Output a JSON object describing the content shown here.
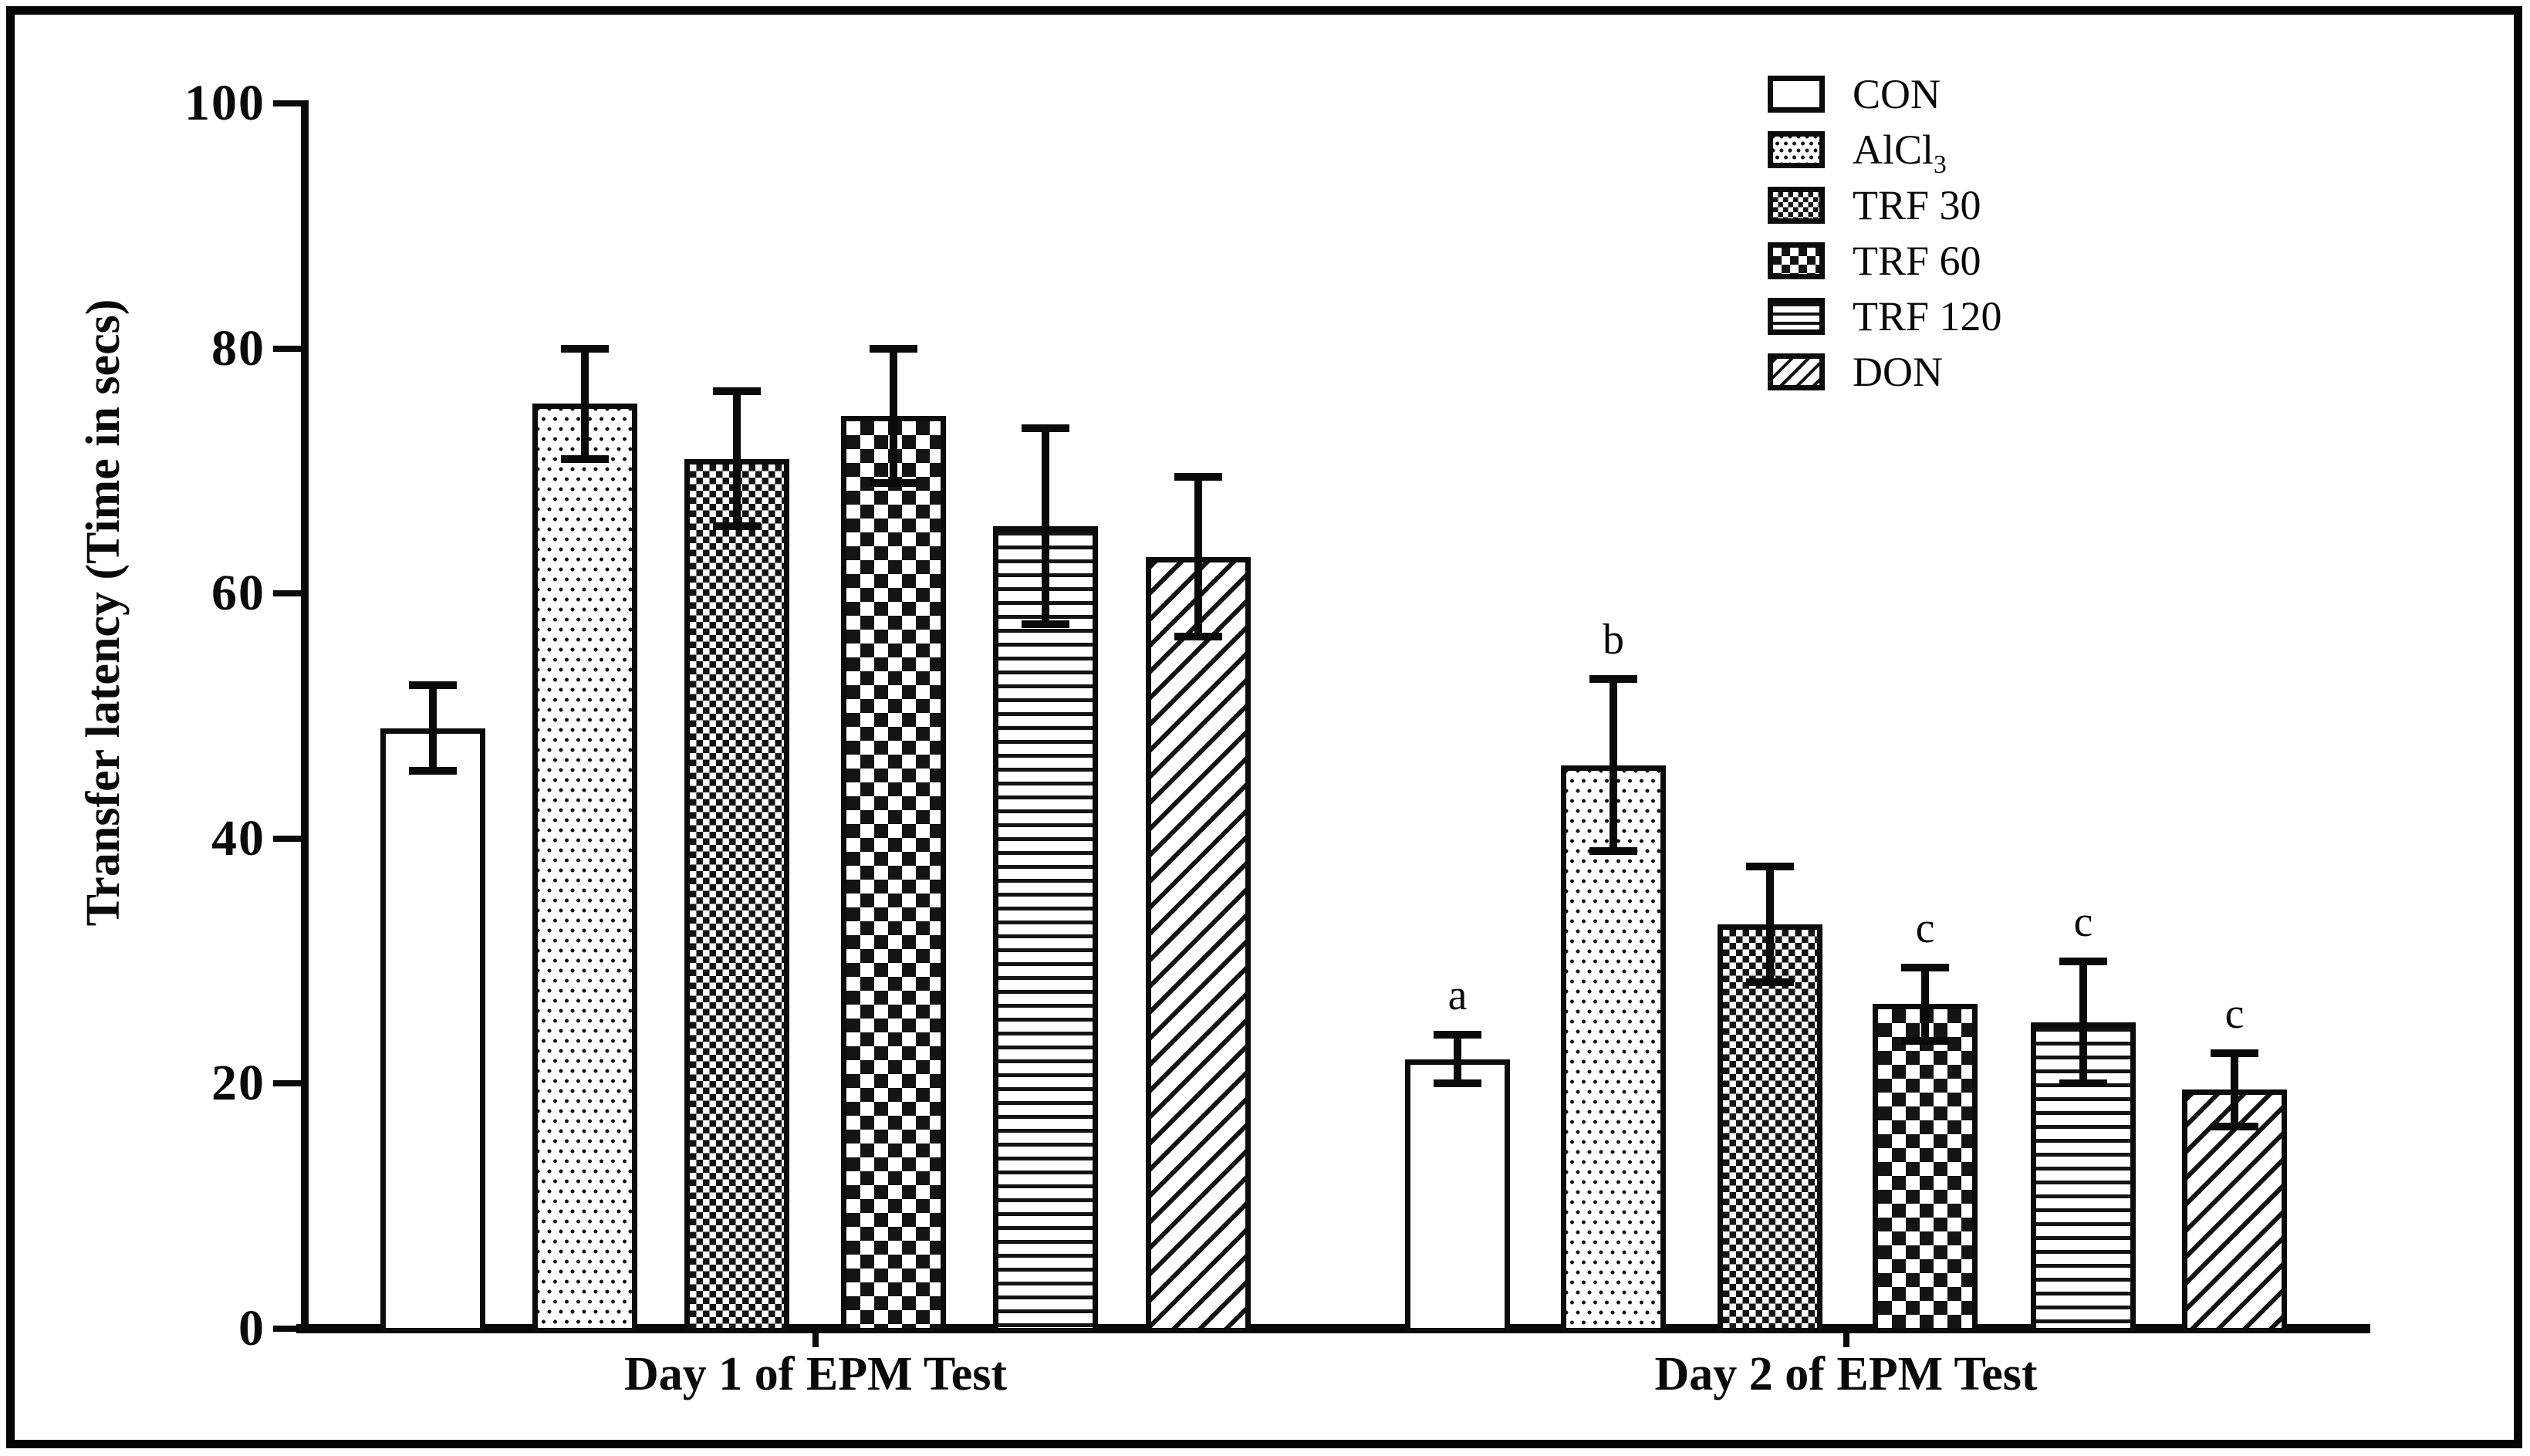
{
  "figure": {
    "background": "#ffffff",
    "border_color": "#050505",
    "ink_color": "#0a0a0a"
  },
  "chart_data": {
    "type": "bar",
    "title": "",
    "xlabel": "",
    "ylabel": "Transfer latency (Time in secs)",
    "ylim": [
      0,
      100
    ],
    "yticks": [
      0,
      20,
      40,
      60,
      80,
      100
    ],
    "grid": false,
    "legend_position": "top-right",
    "error_bars": "SEM, symmetric with caps",
    "groups": [
      "Day 1 of EPM Test",
      "Day 2 of EPM Test"
    ],
    "series": [
      {
        "name": "CON",
        "pattern": "plain",
        "values": [
          49,
          22
        ],
        "sem": [
          3.5,
          2
        ],
        "sig": [
          "",
          "a"
        ]
      },
      {
        "name": "AlCl3",
        "pattern": "dots",
        "values": [
          75.5,
          46
        ],
        "sem": [
          4.5,
          7
        ],
        "sig": [
          "",
          "b"
        ]
      },
      {
        "name": "TRF 30",
        "pattern": "checker-fine",
        "values": [
          71,
          33
        ],
        "sem": [
          5.5,
          4.7
        ],
        "sig": [
          "",
          ""
        ]
      },
      {
        "name": "TRF 60",
        "pattern": "checker-coarse",
        "values": [
          74.5,
          26.5
        ],
        "sem": [
          5.5,
          3
        ],
        "sig": [
          "",
          "c"
        ]
      },
      {
        "name": "TRF 120",
        "pattern": "hlines",
        "values": [
          65.5,
          25
        ],
        "sem": [
          8,
          5
        ],
        "sig": [
          "",
          "c"
        ]
      },
      {
        "name": "DON",
        "pattern": "dlines",
        "values": [
          63,
          19.5
        ],
        "sem": [
          6.5,
          3
        ],
        "sig": [
          "",
          "c"
        ]
      }
    ]
  },
  "legend": {
    "items": [
      {
        "label": "CON"
      },
      {
        "label": "AlCl",
        "sub": "3"
      },
      {
        "label": "TRF 30"
      },
      {
        "label": "TRF 60"
      },
      {
        "label": "TRF 120"
      },
      {
        "label": "DON"
      }
    ]
  }
}
